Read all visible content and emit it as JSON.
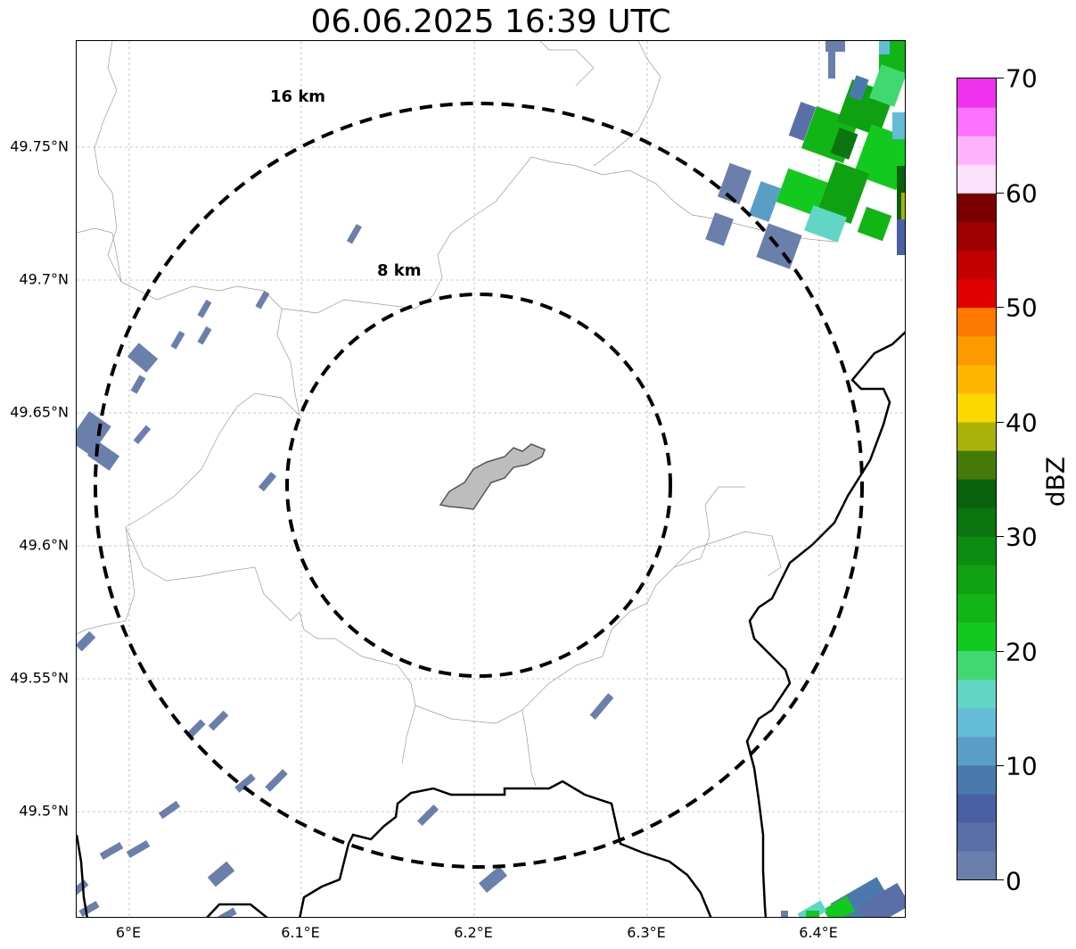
{
  "title": "06.06.2025 16:39 UTC",
  "map": {
    "lat_ticks": [
      "49.75°N",
      "49.7°N",
      "49.65°N",
      "49.6°N",
      "49.55°N",
      "49.5°N"
    ],
    "lon_ticks": [
      "6°E",
      "6.1°E",
      "6.2°E",
      "6.3°E",
      "6.4°E"
    ],
    "ring_labels": [
      "16 km",
      "8 km"
    ],
    "gridlines": true,
    "center_marker_color": "#bdbdbd"
  },
  "colorbar": {
    "label": "dBZ",
    "tick_labels": [
      "0",
      "10",
      "20",
      "30",
      "40",
      "50",
      "60",
      "70"
    ],
    "colors": [
      "#6a7fab",
      "#5a6fa7",
      "#4a60a5",
      "#4a7aad",
      "#5a9ec6",
      "#64bcd8",
      "#62d6c4",
      "#3fd970",
      "#13c91f",
      "#12b516",
      "#10a112",
      "#0d8c12",
      "#0b760f",
      "#0a610d",
      "#457a0a",
      "#aab20a",
      "#fcd800",
      "#fdb600",
      "#fd9a00",
      "#fe7a00",
      "#e10000",
      "#c20000",
      "#9e0000",
      "#7a0000",
      "#fde2fd",
      "#fdb2fd",
      "#fd72fd",
      "#ee32ee"
    ]
  }
}
